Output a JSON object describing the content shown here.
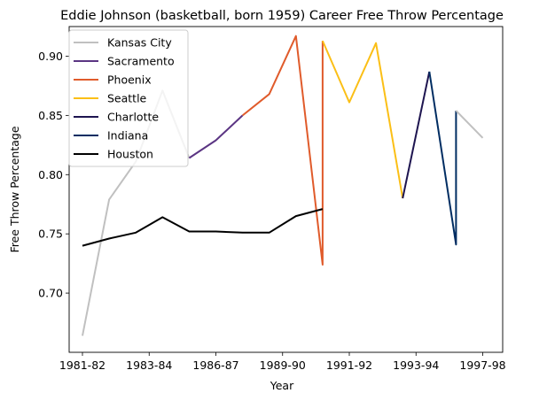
{
  "chart_data": {
    "type": "line",
    "title": "Eddie Johnson (basketball, born 1959) Career Free Throw Percentage",
    "xlabel": "Year",
    "ylabel": "Free Throw Percentage",
    "ylim": [
      0.65,
      0.925
    ],
    "x_tick_labels": [
      "1981-82",
      "1983-84",
      "1986-87",
      "1989-90",
      "1991-92",
      "1993-94",
      "1997-98"
    ],
    "y_ticks": [
      0.7,
      0.75,
      0.8,
      0.85,
      0.9
    ],
    "y_tick_labels": [
      "0.70",
      "0.75",
      "0.80",
      "0.85",
      "0.90"
    ],
    "legend_position": "top-left",
    "series": [
      {
        "name": "Kansas City",
        "color": "#c0c0c0",
        "points": [
          [
            0,
            0.664
          ],
          [
            1,
            0.779
          ],
          [
            2,
            0.811
          ],
          [
            3,
            0.871
          ],
          [
            4,
            0.814
          ]
        ]
      },
      {
        "name": "Sacramento",
        "color": "#5b3583",
        "points": [
          [
            4,
            0.814
          ],
          [
            5,
            0.829
          ],
          [
            6,
            0.85
          ]
        ]
      },
      {
        "name": "Phoenix",
        "color": "#e05b2b",
        "points": [
          [
            6,
            0.85
          ],
          [
            7,
            0.868
          ],
          [
            8,
            0.917
          ],
          [
            9,
            0.724
          ],
          [
            9,
            0.913
          ]
        ]
      },
      {
        "name": "Seattle",
        "color": "#fbbf16",
        "points": [
          [
            9,
            0.913
          ],
          [
            10,
            0.861
          ],
          [
            11,
            0.911
          ],
          [
            12,
            0.78
          ]
        ]
      },
      {
        "name": "Charlotte",
        "color": "#1e1550",
        "points": [
          [
            12,
            0.78
          ],
          [
            13,
            0.887
          ]
        ]
      },
      {
        "name": "Indiana",
        "color": "#002d62",
        "points": [
          [
            13,
            0.887
          ],
          [
            14,
            0.741
          ],
          [
            14,
            0.854
          ]
        ]
      },
      {
        "name": "Houston",
        "color": "#000000",
        "points": [
          [
            0,
            0.74
          ],
          [
            1,
            0.746
          ],
          [
            2,
            0.751
          ],
          [
            3,
            0.764
          ],
          [
            4,
            0.752
          ],
          [
            5,
            0.752
          ],
          [
            6,
            0.751
          ],
          [
            7,
            0.751
          ],
          [
            8,
            0.765
          ],
          [
            9,
            0.771
          ]
        ]
      }
    ],
    "trailing_segment": {
      "series": "Kansas City",
      "points": [
        [
          14,
          0.854
        ],
        [
          15,
          0.831
        ]
      ]
    }
  }
}
